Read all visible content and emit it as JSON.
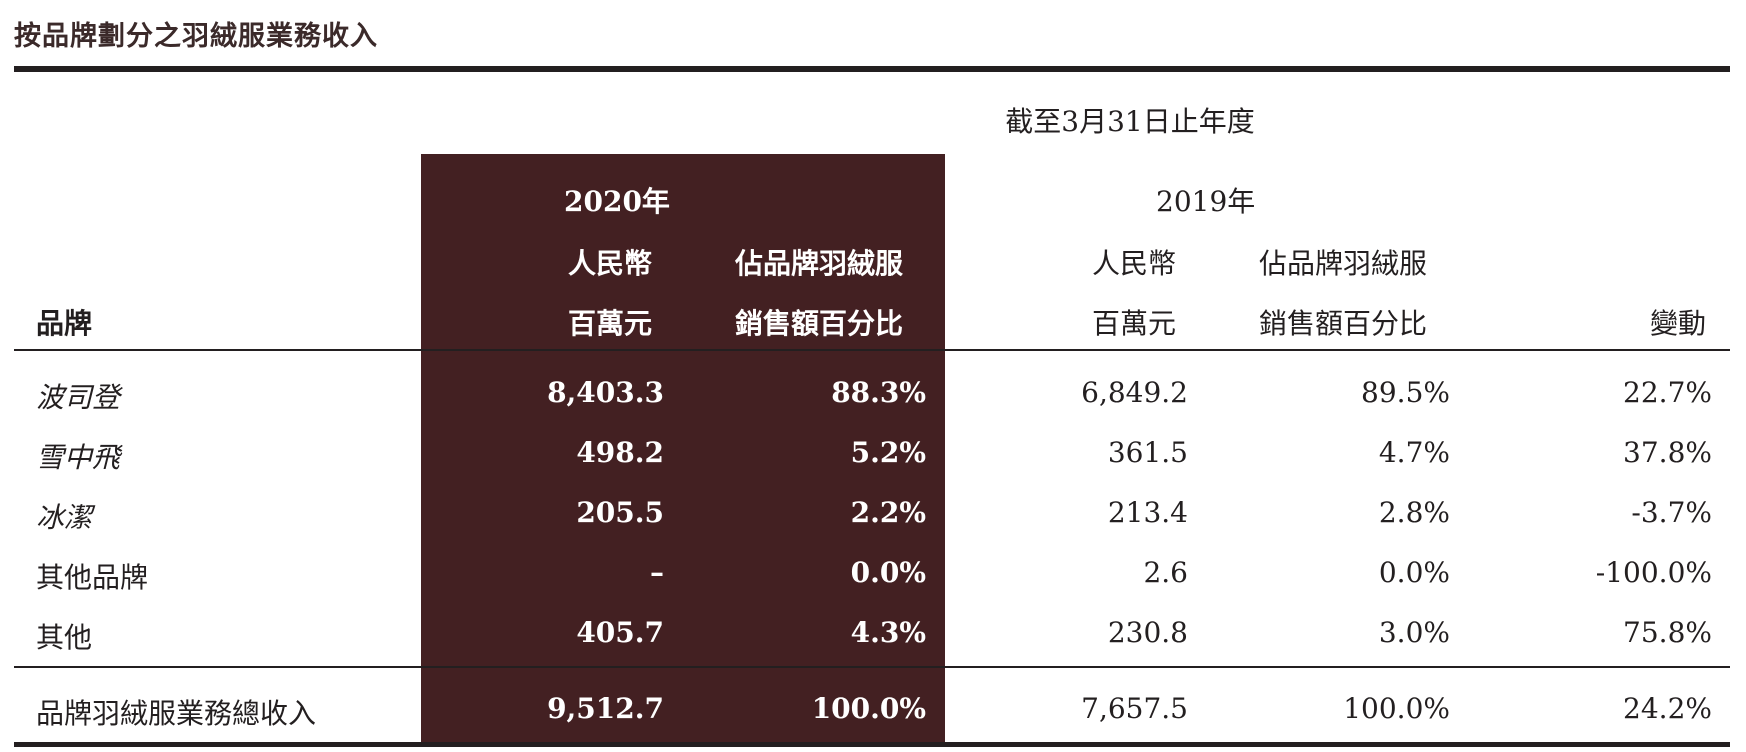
{
  "title": "按品牌劃分之羽絨服業務收入",
  "period_header": "截至3月31日止年度",
  "columns": {
    "brand_header": "品牌",
    "year_2020": "2020年",
    "year_2019": "2019年",
    "rmb_line1": "人民幣",
    "rmb_line2": "百萬元",
    "pct_line1": "佔品牌羽絨服",
    "pct_line2": "銷售額百分比",
    "change": "變動"
  },
  "rows": [
    {
      "brand": "波司登",
      "rmb_2020": "8,403.3",
      "pct_2020": "88.3%",
      "rmb_2019": "6,849.2",
      "pct_2019": "89.5%",
      "change": "22.7%"
    },
    {
      "brand": "雪中飛",
      "rmb_2020": "498.2",
      "pct_2020": "5.2%",
      "rmb_2019": "361.5",
      "pct_2019": "4.7%",
      "change": "37.8%"
    },
    {
      "brand": "冰潔",
      "rmb_2020": "205.5",
      "pct_2020": "2.2%",
      "rmb_2019": "213.4",
      "pct_2019": "2.8%",
      "change": "-3.7%"
    },
    {
      "brand": "其他品牌",
      "rmb_2020": "–",
      "pct_2020": "0.0%",
      "rmb_2019": "2.6",
      "pct_2019": "0.0%",
      "change": "-100.0%"
    },
    {
      "brand": "其他",
      "rmb_2020": "405.7",
      "pct_2020": "4.3%",
      "rmb_2019": "230.8",
      "pct_2019": "3.0%",
      "change": "75.8%"
    }
  ],
  "total": {
    "brand": "品牌羽絨服業務總收入",
    "rmb_2020": "9,512.7",
    "pct_2020": "100.0%",
    "rmb_2019": "7,657.5",
    "pct_2019": "100.0%",
    "change": "24.2%"
  },
  "colors": {
    "highlight_column": "#432022",
    "text": "#231f20"
  }
}
